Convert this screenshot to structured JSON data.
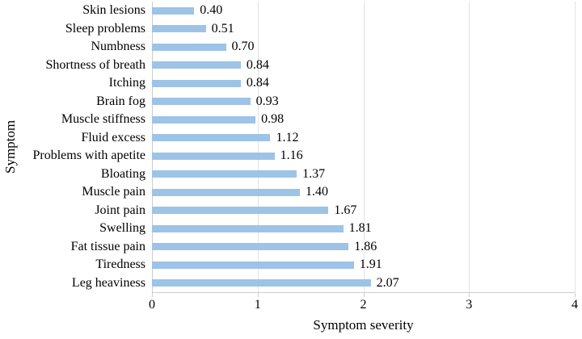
{
  "chart_data": {
    "type": "bar",
    "orientation": "horizontal",
    "title": "",
    "xlabel": "Symptom severity",
    "ylabel": "Symptom",
    "xlim": [
      0,
      4
    ],
    "x_ticks": [
      0,
      1,
      2,
      3,
      4
    ],
    "grid": "vertical-light",
    "bar_color": "#9dc3e6",
    "gridline_color": "#e3e3e3",
    "axis_color": "#cccccc",
    "value_label_format": "2-decimals",
    "categories": [
      "Skin lesions",
      "Sleep problems",
      "Numbness",
      "Shortness of breath",
      "Itching",
      "Brain fog",
      "Muscle stiffness",
      "Fluid excess",
      "Problems with apetite",
      "Bloating",
      "Muscle pain",
      "Joint pain",
      "Swelling",
      "Fat tissue pain",
      "Tiredness",
      "Leg heaviness"
    ],
    "values": [
      0.4,
      0.51,
      0.7,
      0.84,
      0.84,
      0.93,
      0.98,
      1.12,
      1.16,
      1.37,
      1.4,
      1.67,
      1.81,
      1.86,
      1.91,
      2.07
    ]
  }
}
